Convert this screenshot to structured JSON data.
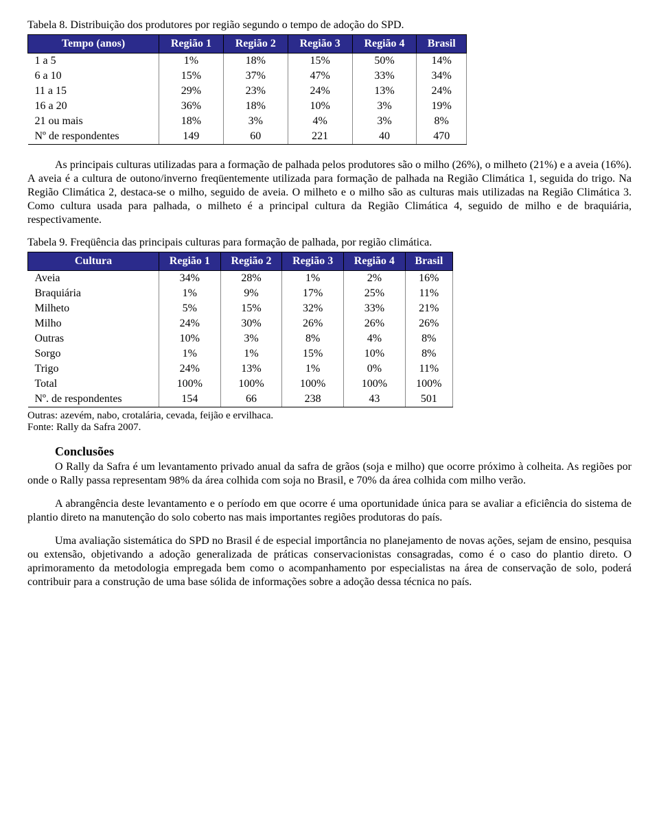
{
  "table8": {
    "title": "Tabela 8. Distribuição dos produtores por região segundo o tempo de adoção do SPD.",
    "columns": [
      "Tempo (anos)",
      "Região 1",
      "Região 2",
      "Região 3",
      "Região 4",
      "Brasil"
    ],
    "rows": [
      [
        "1 a 5",
        "1%",
        "18%",
        "15%",
        "50%",
        "14%"
      ],
      [
        "6 a 10",
        "15%",
        "37%",
        "47%",
        "33%",
        "34%"
      ],
      [
        "11 a 15",
        "29%",
        "23%",
        "24%",
        "13%",
        "24%"
      ],
      [
        "16 a 20",
        "36%",
        "18%",
        "10%",
        "3%",
        "19%"
      ],
      [
        "21 ou mais",
        "18%",
        "3%",
        "4%",
        "3%",
        "8%"
      ],
      [
        "Nº de respondentes",
        "149",
        "60",
        "221",
        "40",
        "470"
      ]
    ]
  },
  "para1": "As principais culturas utilizadas para a formação de palhada pelos produtores são o milho (26%), o milheto (21%) e a aveia (16%). A aveia é a cultura de outono/inverno freqüentemente utilizada para formação de palhada na Região Climática 1, seguida do trigo. Na Região Climática 2, destaca-se o milho, seguido de aveia. O milheto e o milho são as culturas mais utilizadas na Região Climática 3. Como cultura usada para palhada, o milheto é a principal cultura da Região Climática 4, seguido de milho e de braquiária, respectivamente.",
  "table9": {
    "title": "Tabela 9. Freqüência das principais culturas para formação de palhada, por região climática.",
    "columns": [
      "Cultura",
      "Região 1",
      "Região 2",
      "Região 3",
      "Região 4",
      "Brasil"
    ],
    "rows": [
      [
        "Aveia",
        "34%",
        "28%",
        "1%",
        "2%",
        "16%"
      ],
      [
        "Braquiária",
        "1%",
        "9%",
        "17%",
        "25%",
        "11%"
      ],
      [
        "Milheto",
        "5%",
        "15%",
        "32%",
        "33%",
        "21%"
      ],
      [
        "Milho",
        "24%",
        "30%",
        "26%",
        "26%",
        "26%"
      ],
      [
        "Outras",
        "10%",
        "3%",
        "8%",
        "4%",
        "8%"
      ],
      [
        "Sorgo",
        "1%",
        "1%",
        "15%",
        "10%",
        "8%"
      ],
      [
        "Trigo",
        "24%",
        "13%",
        "1%",
        "0%",
        "11%"
      ],
      [
        "Total",
        "100%",
        "100%",
        "100%",
        "100%",
        "100%"
      ],
      [
        "Nº. de respondentes",
        "154",
        "66",
        "238",
        "43",
        "501"
      ]
    ],
    "footnote1": "Outras: azevém, nabo, crotalária, cevada, feijão e ervilhaca.",
    "footnote2": "Fonte: Rally da Safra 2007."
  },
  "conclusions": {
    "heading": "Conclusões",
    "p1": "O Rally da Safra é um levantamento privado anual da safra de grãos (soja e milho) que ocorre próximo à colheita. As regiões por onde o Rally passa representam 98% da área colhida com soja no Brasil, e 70% da área colhida com milho verão.",
    "p2": "A abrangência deste levantamento e o período em que ocorre é uma oportunidade única para se avaliar a eficiência do sistema de plantio direto na manutenção do solo coberto nas mais importantes regiões produtoras do país.",
    "p3": "Uma avaliação sistemática do SPD no Brasil é de especial importância no planejamento de novas ações, sejam de ensino, pesquisa ou extensão, objetivando a adoção generalizada de práticas conservacionistas consagradas, como é o caso do plantio direto. O aprimoramento da metodologia empregada bem como o acompanhamento por especialistas na área de conservação de solo, poderá contribuir para a construção de uma base sólida de informações sobre a adoção dessa técnica no país."
  }
}
